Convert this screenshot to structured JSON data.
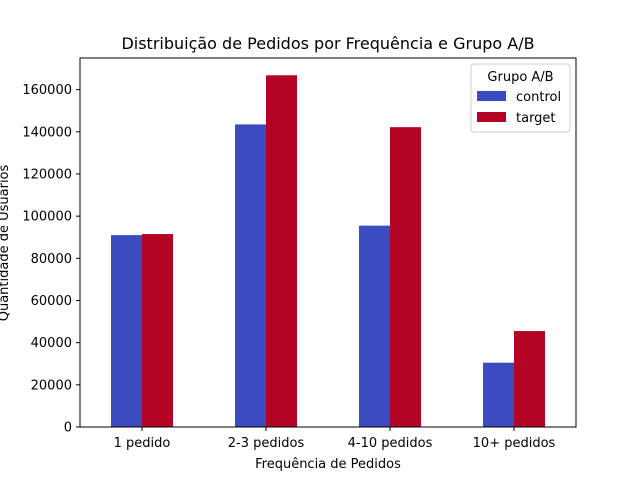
{
  "chart_data": {
    "type": "bar",
    "title": "Distribuição de Pedidos por Frequência e Grupo A/B",
    "xlabel": "Frequência de Pedidos",
    "ylabel": "Quantidade de Usuários",
    "categories": [
      "1 pedido",
      "2-3 pedidos",
      "4-10 pedidos",
      "10+ pedidos"
    ],
    "series": [
      {
        "name": "control",
        "color": "#3b4cc0",
        "values": [
          91000,
          143500,
          95500,
          30500
        ]
      },
      {
        "name": "target",
        "color": "#b40426",
        "values": [
          91500,
          166800,
          142200,
          45500
        ]
      }
    ],
    "ylim": [
      0,
      175000
    ],
    "yticks": [
      0,
      20000,
      40000,
      60000,
      80000,
      100000,
      120000,
      140000,
      160000
    ],
    "grid": false,
    "legend": {
      "title": "Grupo A/B",
      "position": "top-right"
    }
  }
}
